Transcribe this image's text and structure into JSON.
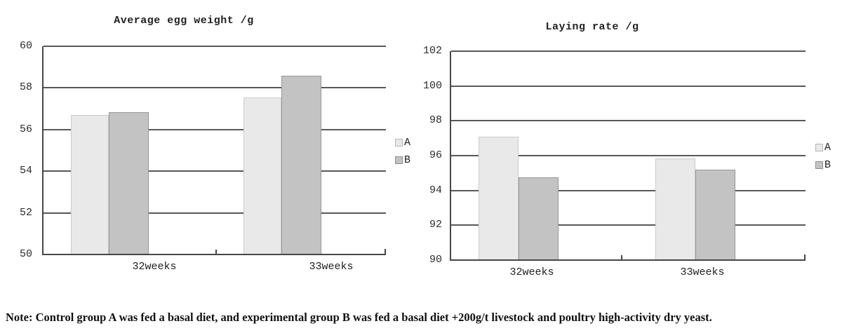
{
  "note": "Note: Control group A was fed a basal diet, and experimental group B was fed a basal diet +200g/t livestock and poultry high-activity dry yeast.",
  "colors": {
    "series_a_fill": "#e9e9e9",
    "series_a_border": "#cbcbcb",
    "series_b_fill": "#c3c3c3",
    "series_b_border": "#979797",
    "gridline": "#585858",
    "axis": "#474747",
    "text": "#262626"
  },
  "chart_data": [
    {
      "type": "bar",
      "title": "Average egg weight /g",
      "categories": [
        "32weeks",
        "33weeks"
      ],
      "series": [
        {
          "name": "A",
          "values": [
            56.7,
            57.55
          ]
        },
        {
          "name": "B",
          "values": [
            56.85,
            58.6
          ]
        }
      ],
      "ylim": [
        50,
        60
      ],
      "ytick_step": 2,
      "yticks": [
        "60",
        "58",
        "56",
        "54",
        "52",
        "50"
      ],
      "grid": true,
      "legend_position": "right",
      "legend_entries": [
        "A",
        "B"
      ]
    },
    {
      "type": "bar",
      "title": "Laying rate /g",
      "categories": [
        "32weeks",
        "33weeks"
      ],
      "series": [
        {
          "name": "A",
          "values": [
            97.1,
            95.85
          ]
        },
        {
          "name": "B",
          "values": [
            94.75,
            95.2
          ]
        }
      ],
      "ylim": [
        90,
        102
      ],
      "ytick_step": 2,
      "yticks": [
        "102",
        "100",
        "98",
        "96",
        "94",
        "92",
        "90"
      ],
      "grid": true,
      "legend_position": "right",
      "legend_entries": [
        "A",
        "B"
      ]
    }
  ]
}
